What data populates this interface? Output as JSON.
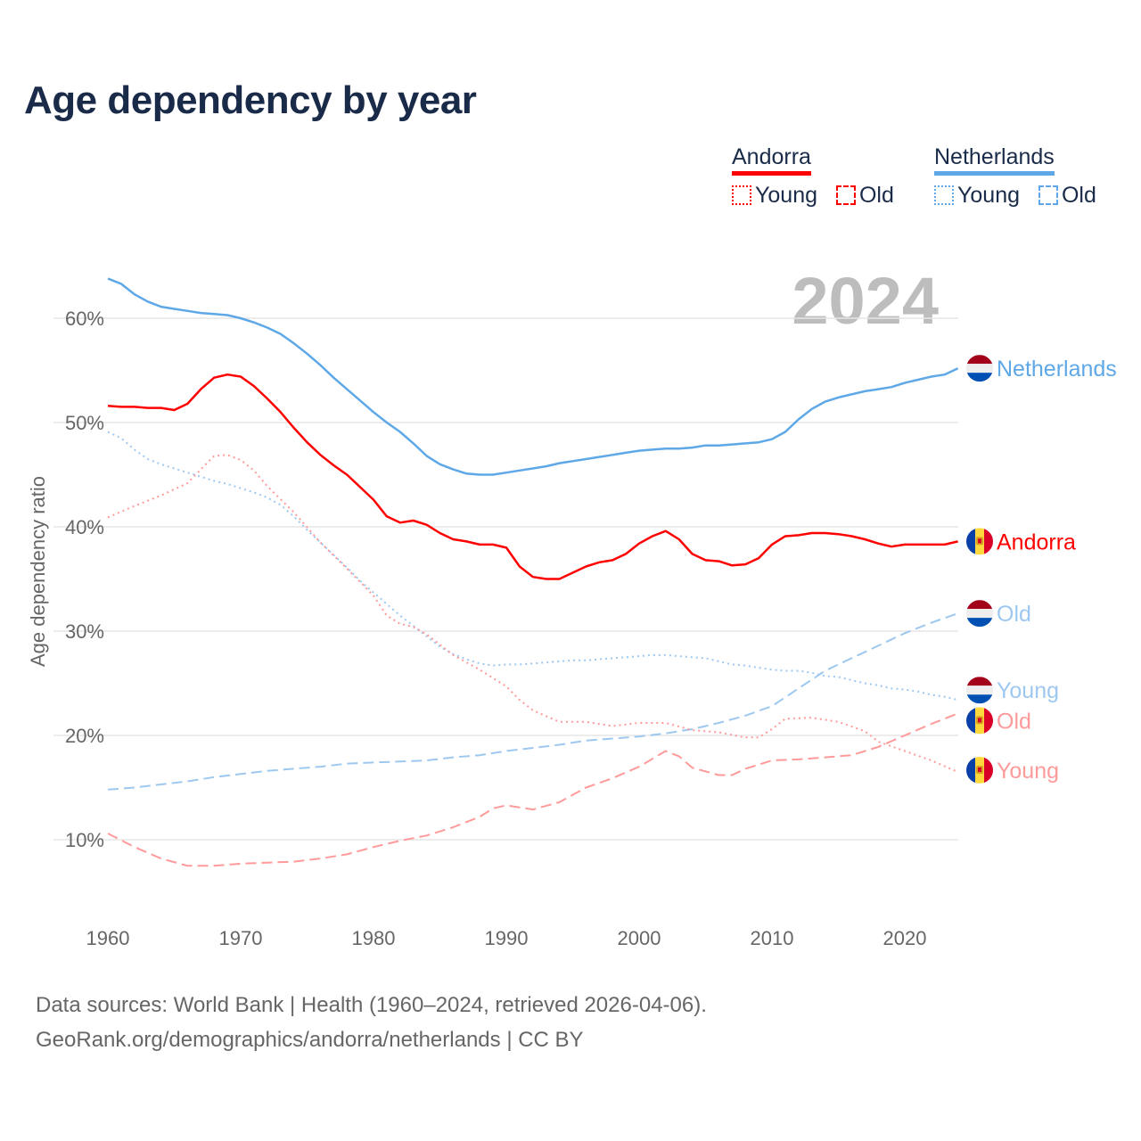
{
  "title": "Age dependency by year",
  "legend": {
    "groups": [
      {
        "name": "Andorra",
        "color": "#ff0000",
        "light": "#ff9a9a",
        "items": [
          "Young",
          "Old"
        ]
      },
      {
        "name": "Netherlands",
        "color": "#5ea8e8",
        "light": "#9ec8f0",
        "items": [
          "Young",
          "Old"
        ]
      }
    ]
  },
  "footer": {
    "line1": "Data sources: World Bank | Health (1960–2024, retrieved 2026-04-06).",
    "line2": "GeoRank.org/demographics/andorra/netherlands | CC BY"
  },
  "chart_data": {
    "type": "line",
    "title": "Age dependency by year",
    "year_watermark": "2024",
    "xlabel": "",
    "ylabel": "Age dependency ratio",
    "xlim": [
      1960,
      2024
    ],
    "ylim": [
      3,
      65
    ],
    "x_ticks": [
      "1960",
      "1970",
      "1980",
      "1990",
      "2000",
      "2010",
      "2020"
    ],
    "y_ticks": [
      "10%",
      "20%",
      "30%",
      "40%",
      "50%",
      "60%"
    ],
    "grid": true,
    "series": [
      {
        "name": "Netherlands",
        "end_label": "Netherlands",
        "flag": "netherlands",
        "color": "#5ea8e8",
        "style": "solid",
        "x": [
          1960,
          1961,
          1962,
          1963,
          1964,
          1965,
          1966,
          1967,
          1968,
          1969,
          1970,
          1971,
          1972,
          1973,
          1974,
          1975,
          1976,
          1977,
          1978,
          1979,
          1980,
          1981,
          1982,
          1983,
          1984,
          1985,
          1986,
          1987,
          1988,
          1989,
          1990,
          1991,
          1992,
          1993,
          1994,
          1995,
          1996,
          1997,
          1998,
          1999,
          2000,
          2001,
          2002,
          2003,
          2004,
          2005,
          2006,
          2007,
          2008,
          2009,
          2010,
          2011,
          2012,
          2013,
          2014,
          2015,
          2016,
          2017,
          2018,
          2019,
          2020,
          2021,
          2022,
          2023,
          2024
        ],
        "y": [
          63.8,
          63.3,
          62.3,
          61.6,
          61.1,
          60.9,
          60.7,
          60.5,
          60.4,
          60.3,
          60.0,
          59.6,
          59.1,
          58.5,
          57.6,
          56.6,
          55.5,
          54.3,
          53.2,
          52.1,
          51.0,
          50.0,
          49.1,
          48.0,
          46.8,
          46.0,
          45.5,
          45.1,
          45.0,
          45.0,
          45.2,
          45.4,
          45.6,
          45.8,
          46.1,
          46.3,
          46.5,
          46.7,
          46.9,
          47.1,
          47.3,
          47.4,
          47.5,
          47.5,
          47.6,
          47.8,
          47.8,
          47.9,
          48.0,
          48.1,
          48.4,
          49.1,
          50.3,
          51.3,
          52.0,
          52.4,
          52.7,
          53.0,
          53.2,
          53.4,
          53.8,
          54.1,
          54.4,
          54.6,
          55.2
        ]
      },
      {
        "name": "Andorra",
        "end_label": "Andorra",
        "flag": "andorra",
        "color": "#ff0000",
        "style": "solid",
        "x": [
          1960,
          1961,
          1962,
          1963,
          1964,
          1965,
          1966,
          1967,
          1968,
          1969,
          1970,
          1971,
          1972,
          1973,
          1974,
          1975,
          1976,
          1977,
          1978,
          1979,
          1980,
          1981,
          1982,
          1983,
          1984,
          1985,
          1986,
          1987,
          1988,
          1989,
          1990,
          1991,
          1992,
          1993,
          1994,
          1995,
          1996,
          1997,
          1998,
          1999,
          2000,
          2001,
          2002,
          2003,
          2004,
          2005,
          2006,
          2007,
          2008,
          2009,
          2010,
          2011,
          2012,
          2013,
          2014,
          2015,
          2016,
          2017,
          2018,
          2019,
          2020,
          2021,
          2022,
          2023,
          2024
        ],
        "y": [
          51.6,
          51.5,
          51.5,
          51.4,
          51.4,
          51.2,
          51.8,
          53.2,
          54.3,
          54.6,
          54.4,
          53.5,
          52.3,
          51.0,
          49.5,
          48.1,
          46.9,
          45.9,
          45.0,
          43.8,
          42.6,
          41.0,
          40.4,
          40.6,
          40.2,
          39.4,
          38.8,
          38.6,
          38.3,
          38.3,
          38.0,
          36.2,
          35.2,
          35.0,
          35.0,
          35.6,
          36.2,
          36.6,
          36.8,
          37.4,
          38.4,
          39.1,
          39.6,
          38.8,
          37.4,
          36.8,
          36.7,
          36.3,
          36.4,
          37.0,
          38.3,
          39.1,
          39.2,
          39.4,
          39.4,
          39.3,
          39.1,
          38.8,
          38.4,
          38.1,
          38.3,
          38.3,
          38.3,
          38.3,
          38.6
        ]
      },
      {
        "name": "Netherlands Old",
        "end_label": "Old",
        "flag": "netherlands",
        "color": "#9ec8f0",
        "style": "dashed",
        "x": [
          1960,
          1962,
          1964,
          1966,
          1968,
          1970,
          1972,
          1974,
          1976,
          1978,
          1980,
          1982,
          1984,
          1986,
          1988,
          1990,
          1992,
          1994,
          1996,
          1998,
          2000,
          2002,
          2004,
          2006,
          2008,
          2010,
          2012,
          2014,
          2016,
          2018,
          2020,
          2022,
          2024
        ],
        "y": [
          14.8,
          15.0,
          15.3,
          15.6,
          16.0,
          16.3,
          16.6,
          16.8,
          17.0,
          17.3,
          17.4,
          17.5,
          17.6,
          17.9,
          18.1,
          18.5,
          18.8,
          19.1,
          19.5,
          19.7,
          19.9,
          20.2,
          20.6,
          21.2,
          21.9,
          22.8,
          24.5,
          26.2,
          27.4,
          28.6,
          29.8,
          30.8,
          31.7
        ]
      },
      {
        "name": "Netherlands Young",
        "end_label": "Young",
        "flag": "netherlands",
        "color": "#9ec8f0",
        "style": "dotted",
        "x": [
          1960,
          1961,
          1962,
          1963,
          1964,
          1965,
          1966,
          1967,
          1968,
          1969,
          1970,
          1971,
          1972,
          1973,
          1974,
          1975,
          1976,
          1977,
          1978,
          1979,
          1980,
          1981,
          1982,
          1983,
          1984,
          1985,
          1986,
          1987,
          1988,
          1989,
          1990,
          1991,
          1992,
          1993,
          1994,
          1995,
          1996,
          1997,
          1998,
          1999,
          2000,
          2001,
          2002,
          2003,
          2004,
          2005,
          2006,
          2007,
          2008,
          2009,
          2010,
          2011,
          2012,
          2013,
          2014,
          2015,
          2016,
          2017,
          2018,
          2019,
          2020,
          2021,
          2022,
          2023,
          2024
        ],
        "y": [
          49.1,
          48.5,
          47.4,
          46.5,
          46.0,
          45.6,
          45.2,
          44.8,
          44.4,
          44.1,
          43.7,
          43.3,
          42.8,
          42.1,
          41.0,
          39.7,
          38.5,
          37.3,
          36.1,
          34.8,
          33.7,
          32.6,
          31.5,
          30.5,
          29.5,
          28.5,
          27.8,
          27.3,
          26.9,
          26.7,
          26.8,
          26.8,
          26.9,
          27.0,
          27.1,
          27.2,
          27.2,
          27.3,
          27.4,
          27.5,
          27.6,
          27.7,
          27.7,
          27.6,
          27.5,
          27.4,
          27.1,
          26.8,
          26.7,
          26.5,
          26.3,
          26.2,
          26.2,
          26.0,
          25.7,
          25.6,
          25.3,
          25.0,
          24.8,
          24.5,
          24.4,
          24.2,
          23.9,
          23.7,
          23.4
        ]
      },
      {
        "name": "Andorra Old",
        "end_label": "Old",
        "flag": "andorra",
        "color": "#ff9a9a",
        "style": "dashed",
        "x": [
          1960,
          1962,
          1964,
          1966,
          1968,
          1970,
          1972,
          1974,
          1976,
          1978,
          1980,
          1982,
          1984,
          1986,
          1988,
          1989,
          1990,
          1992,
          1994,
          1996,
          1998,
          2000,
          2002,
          2003,
          2004,
          2006,
          2007,
          2008,
          2010,
          2012,
          2014,
          2016,
          2018,
          2020,
          2022,
          2024
        ],
        "y": [
          10.6,
          9.3,
          8.2,
          7.5,
          7.5,
          7.7,
          7.8,
          7.9,
          8.2,
          8.6,
          9.3,
          9.9,
          10.4,
          11.2,
          12.2,
          13.0,
          13.3,
          12.9,
          13.6,
          15.0,
          15.9,
          17.0,
          18.5,
          18.0,
          16.9,
          16.2,
          16.2,
          16.8,
          17.6,
          17.7,
          17.9,
          18.1,
          18.9,
          20.0,
          21.1,
          22.1
        ]
      },
      {
        "name": "Andorra Young",
        "end_label": "Young",
        "flag": "andorra",
        "color": "#ff9a9a",
        "style": "dotted",
        "x": [
          1960,
          1962,
          1964,
          1966,
          1967,
          1968,
          1969,
          1970,
          1971,
          1972,
          1974,
          1976,
          1978,
          1980,
          1981,
          1982,
          1983,
          1984,
          1986,
          1988,
          1990,
          1991,
          1992,
          1994,
          1996,
          1998,
          2000,
          2002,
          2004,
          2006,
          2008,
          2009,
          2010,
          2011,
          2013,
          2015,
          2017,
          2018,
          2020,
          2022,
          2024
        ],
        "y": [
          40.9,
          42.0,
          43.0,
          44.2,
          45.5,
          46.8,
          46.9,
          46.4,
          45.4,
          43.9,
          41.4,
          38.5,
          36.0,
          33.4,
          31.5,
          30.7,
          30.4,
          29.7,
          27.7,
          26.3,
          24.7,
          23.4,
          22.4,
          21.3,
          21.3,
          20.9,
          21.2,
          21.2,
          20.5,
          20.3,
          19.8,
          19.8,
          20.6,
          21.6,
          21.7,
          21.3,
          20.4,
          19.4,
          18.5,
          17.6,
          16.5
        ]
      }
    ]
  }
}
